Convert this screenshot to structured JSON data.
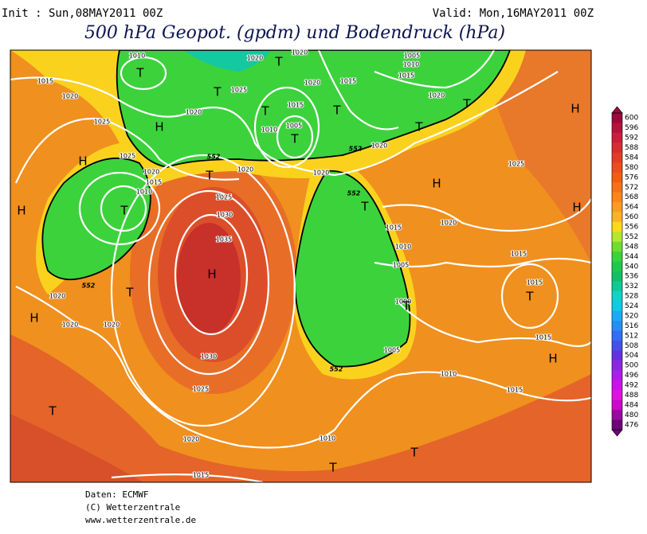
{
  "header": {
    "init": "Init : Sun,08MAY2011 00Z",
    "valid": "Valid: Mon,16MAY2011 00Z",
    "title": "500 hPa Geopot. (gpdm) und Bodendruck (hPa)"
  },
  "map": {
    "isobar_labels": [
      "1010",
      "1020",
      "1020",
      "1005",
      "1010",
      "1015",
      "1015",
      "1020",
      "1015",
      "1025",
      "1020",
      "1020",
      "1025",
      "1020",
      "1015",
      "1005",
      "1010",
      "1025",
      "1020",
      "1020",
      "1020",
      "1020",
      "1015",
      "1010",
      "1025",
      "1025",
      "1030",
      "1020",
      "1035",
      "1015",
      "1010",
      "1015",
      "1005",
      "1015",
      "1020",
      "1000",
      "1020",
      "1020",
      "1015",
      "1005",
      "1030",
      "1010",
      "1015",
      "1025",
      "1020",
      "1010",
      "1015"
    ],
    "pressure_centers": [
      "T",
      "T",
      "T",
      "T",
      "T",
      "T",
      "H",
      "T",
      "H",
      "T",
      "H",
      "T",
      "H",
      "T",
      "H",
      "T",
      "H",
      "H",
      "T",
      "T",
      "T",
      "H",
      "H",
      "T",
      "T",
      "T"
    ],
    "contour_labels": [
      "552",
      "552",
      "552",
      "552",
      "552"
    ]
  },
  "colorbar": {
    "ticks": [
      600,
      596,
      592,
      588,
      584,
      580,
      576,
      572,
      568,
      564,
      560,
      556,
      552,
      548,
      544,
      540,
      536,
      532,
      528,
      524,
      520,
      516,
      512,
      508,
      504,
      500,
      496,
      492,
      488,
      484,
      480,
      476
    ],
    "colors": [
      "#9c0a3c",
      "#b2143c",
      "#c6203a",
      "#d42e30",
      "#de3e26",
      "#e84e1e",
      "#ee5e16",
      "#f2721a",
      "#f6861e",
      "#f89c24",
      "#fab22a",
      "#fcd81e",
      "#b4e632",
      "#6edc32",
      "#3cd23c",
      "#20c850",
      "#14be64",
      "#14c896",
      "#14d2c8",
      "#14c8e6",
      "#1eaaf0",
      "#288cf0",
      "#326ef0",
      "#4650e6",
      "#6432dc",
      "#8c28dc",
      "#aa1ee6",
      "#c814e6",
      "#dc14dc",
      "#c80ac8",
      "#960aa0",
      "#6e0078"
    ]
  },
  "footer": {
    "lines": [
      "Daten: ECMWF",
      "(C) Wetterzentrale",
      "www.wetterzentrale.de"
    ]
  }
}
